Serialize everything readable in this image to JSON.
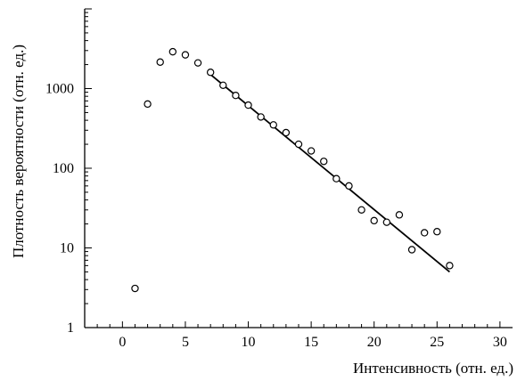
{
  "chart_data": {
    "type": "scatter",
    "xlabel": "Интенсивность (отн. ед.)",
    "ylabel": "Плотность вероятности (отн. ед.)",
    "xlim": [
      -3,
      31
    ],
    "ylim": [
      1,
      10000
    ],
    "yscale": "log",
    "grid": false,
    "xticks": [
      0,
      5,
      10,
      15,
      20,
      25,
      30
    ],
    "xtick_labels": [
      "0",
      "5",
      "10",
      "15",
      "20",
      "25",
      "30"
    ],
    "yticks": [
      1,
      10,
      100,
      1000
    ],
    "ytick_labels": [
      "1",
      "10",
      "100",
      "1000"
    ],
    "series": [
      {
        "marker": "open-circle",
        "x": [
          1,
          2,
          3,
          4,
          5,
          6,
          7,
          8,
          9,
          10,
          11,
          12,
          13,
          14,
          15,
          16,
          17,
          18,
          19,
          20,
          21,
          22,
          23,
          24,
          25,
          26
        ],
        "y": [
          3.1,
          640,
          2150,
          2900,
          2650,
          2100,
          1600,
          1100,
          820,
          620,
          440,
          350,
          280,
          200,
          165,
          122,
          74,
          60,
          30,
          22,
          21,
          26,
          9.5,
          15.5,
          16,
          6
        ]
      },
      {
        "line": "fit",
        "x": [
          7,
          26
        ],
        "y": [
          1500,
          5
        ]
      }
    ]
  }
}
